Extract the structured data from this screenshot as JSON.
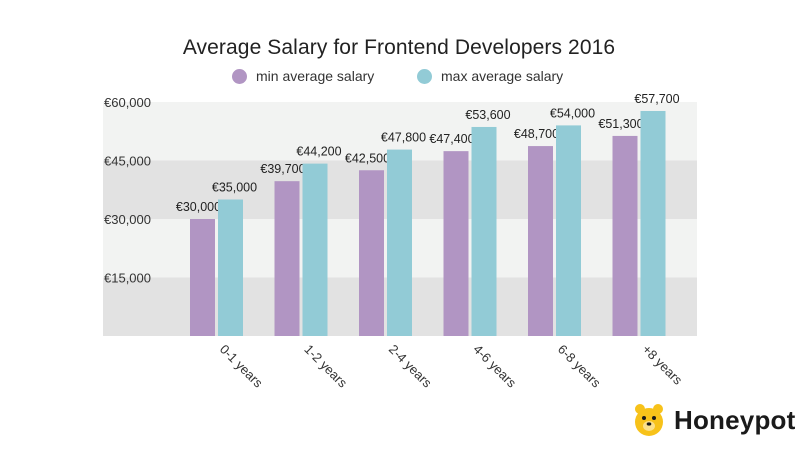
{
  "chart_data": {
    "type": "bar",
    "title": "Average Salary for Frontend Developers 2016",
    "categories": [
      "0-1 years",
      "1-2 years",
      "2-4 years",
      "4-6 years",
      "6-8 years",
      "+8 years"
    ],
    "series": [
      {
        "name": "min average salary",
        "color": "#b195c3",
        "values": [
          30000,
          39700,
          42500,
          47400,
          48700,
          51300
        ],
        "labels": [
          "€30,000",
          "€39,700",
          "€42,500",
          "€47,400",
          "€48,700",
          "€51,300"
        ]
      },
      {
        "name": "max average salary",
        "color": "#92cbd6",
        "values": [
          35000,
          44200,
          47800,
          53600,
          54000,
          57700
        ],
        "labels": [
          "€35,000",
          "€44,200",
          "€47,800",
          "€53,600",
          "€54,000",
          "€57,700"
        ]
      }
    ],
    "yticks": [
      {
        "value": 15000,
        "label": "€15,000"
      },
      {
        "value": 30000,
        "label": "€30,000"
      },
      {
        "value": 45000,
        "label": "€45,000"
      },
      {
        "value": 60000,
        "label": "€60,000"
      }
    ],
    "ylim": [
      0,
      60000
    ],
    "xlabel": "",
    "ylabel": "",
    "grid": "alternating horizontal bands",
    "legend_position": "top-center",
    "band_colors": [
      "#e2e2e2",
      "#f2f3f2"
    ]
  },
  "brand": {
    "name": "Honeypot",
    "logo_icon": "bear-icon",
    "logo_color": "#f7c21a"
  }
}
